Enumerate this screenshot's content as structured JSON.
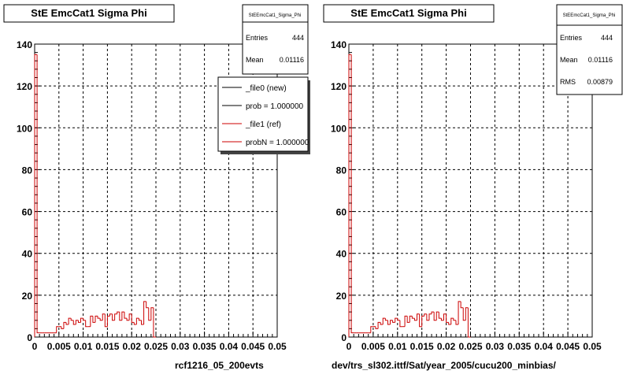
{
  "chart_data": [
    {
      "type": "bar",
      "title": "StE EmcCat1 Sigma Phi",
      "stats": {
        "name": "StEEmcCat1_Sigma_Phi",
        "rows": [
          {
            "label": "Entries",
            "value": "444"
          },
          {
            "label": "Mean",
            "value": "0.01116"
          }
        ]
      },
      "legend": {
        "placement": "top-right",
        "entries": [
          {
            "label": "_file0 (new)",
            "color": "#000000"
          },
          {
            "label": "prob = 1.000000",
            "color": "#000000"
          },
          {
            "label": "_file1 (ref)",
            "color": "#cc0000"
          },
          {
            "label": "probN = 1.000000",
            "color": "#cc0000"
          }
        ]
      },
      "footer": "rcf1216_05_200evts",
      "xlim": [
        0,
        0.05
      ],
      "ylim": [
        0,
        140
      ],
      "xticks": [
        "0",
        "0.005",
        "0.01",
        "0.015",
        "0.02",
        "0.025",
        "0.03",
        "0.035",
        "0.04",
        "0.045",
        "0.05"
      ],
      "yticks": [
        "0",
        "20",
        "40",
        "60",
        "80",
        "100",
        "120",
        "140"
      ],
      "bin_width": 0.0005,
      "grid": true,
      "series": [
        {
          "color": "#cc0000",
          "values": [
            135,
            2,
            2,
            2,
            2,
            2,
            2,
            2,
            2,
            5,
            5,
            4,
            7,
            6,
            9,
            8,
            6,
            8,
            7,
            9,
            8,
            5,
            5,
            10,
            7,
            10,
            9,
            8,
            11,
            5,
            10,
            11,
            8,
            11,
            12,
            8,
            12,
            9,
            8,
            11,
            7,
            6,
            9,
            8,
            6,
            17,
            14,
            8,
            14,
            0
          ]
        }
      ]
    },
    {
      "type": "bar",
      "title": "StE EmcCat1 Sigma Phi",
      "stats": {
        "name": "StEEmcCat1_Sigma_Phi",
        "rows": [
          {
            "label": "Entries",
            "value": "444"
          },
          {
            "label": "Mean",
            "value": "0.01116"
          },
          {
            "label": "RMS",
            "value": "0.00879"
          }
        ]
      },
      "footer": "dev/trs_sl302.ittf/Sat/year_2005/cucu200_minbias/",
      "xlim": [
        0,
        0.05
      ],
      "ylim": [
        0,
        140
      ],
      "xticks": [
        "0",
        "0.005",
        "0.01",
        "0.015",
        "0.02",
        "0.025",
        "0.03",
        "0.035",
        "0.04",
        "0.045",
        "0.05"
      ],
      "yticks": [
        "0",
        "20",
        "40",
        "60",
        "80",
        "100",
        "120",
        "140"
      ],
      "bin_width": 0.0005,
      "grid": true,
      "series": [
        {
          "color": "#cc0000",
          "values": [
            135,
            2,
            2,
            2,
            2,
            2,
            2,
            2,
            2,
            5,
            5,
            4,
            7,
            6,
            9,
            8,
            6,
            8,
            7,
            9,
            8,
            5,
            5,
            10,
            7,
            10,
            9,
            8,
            11,
            5,
            10,
            11,
            8,
            11,
            12,
            8,
            12,
            9,
            8,
            11,
            7,
            6,
            9,
            8,
            6,
            17,
            14,
            8,
            14,
            0
          ]
        }
      ]
    }
  ]
}
